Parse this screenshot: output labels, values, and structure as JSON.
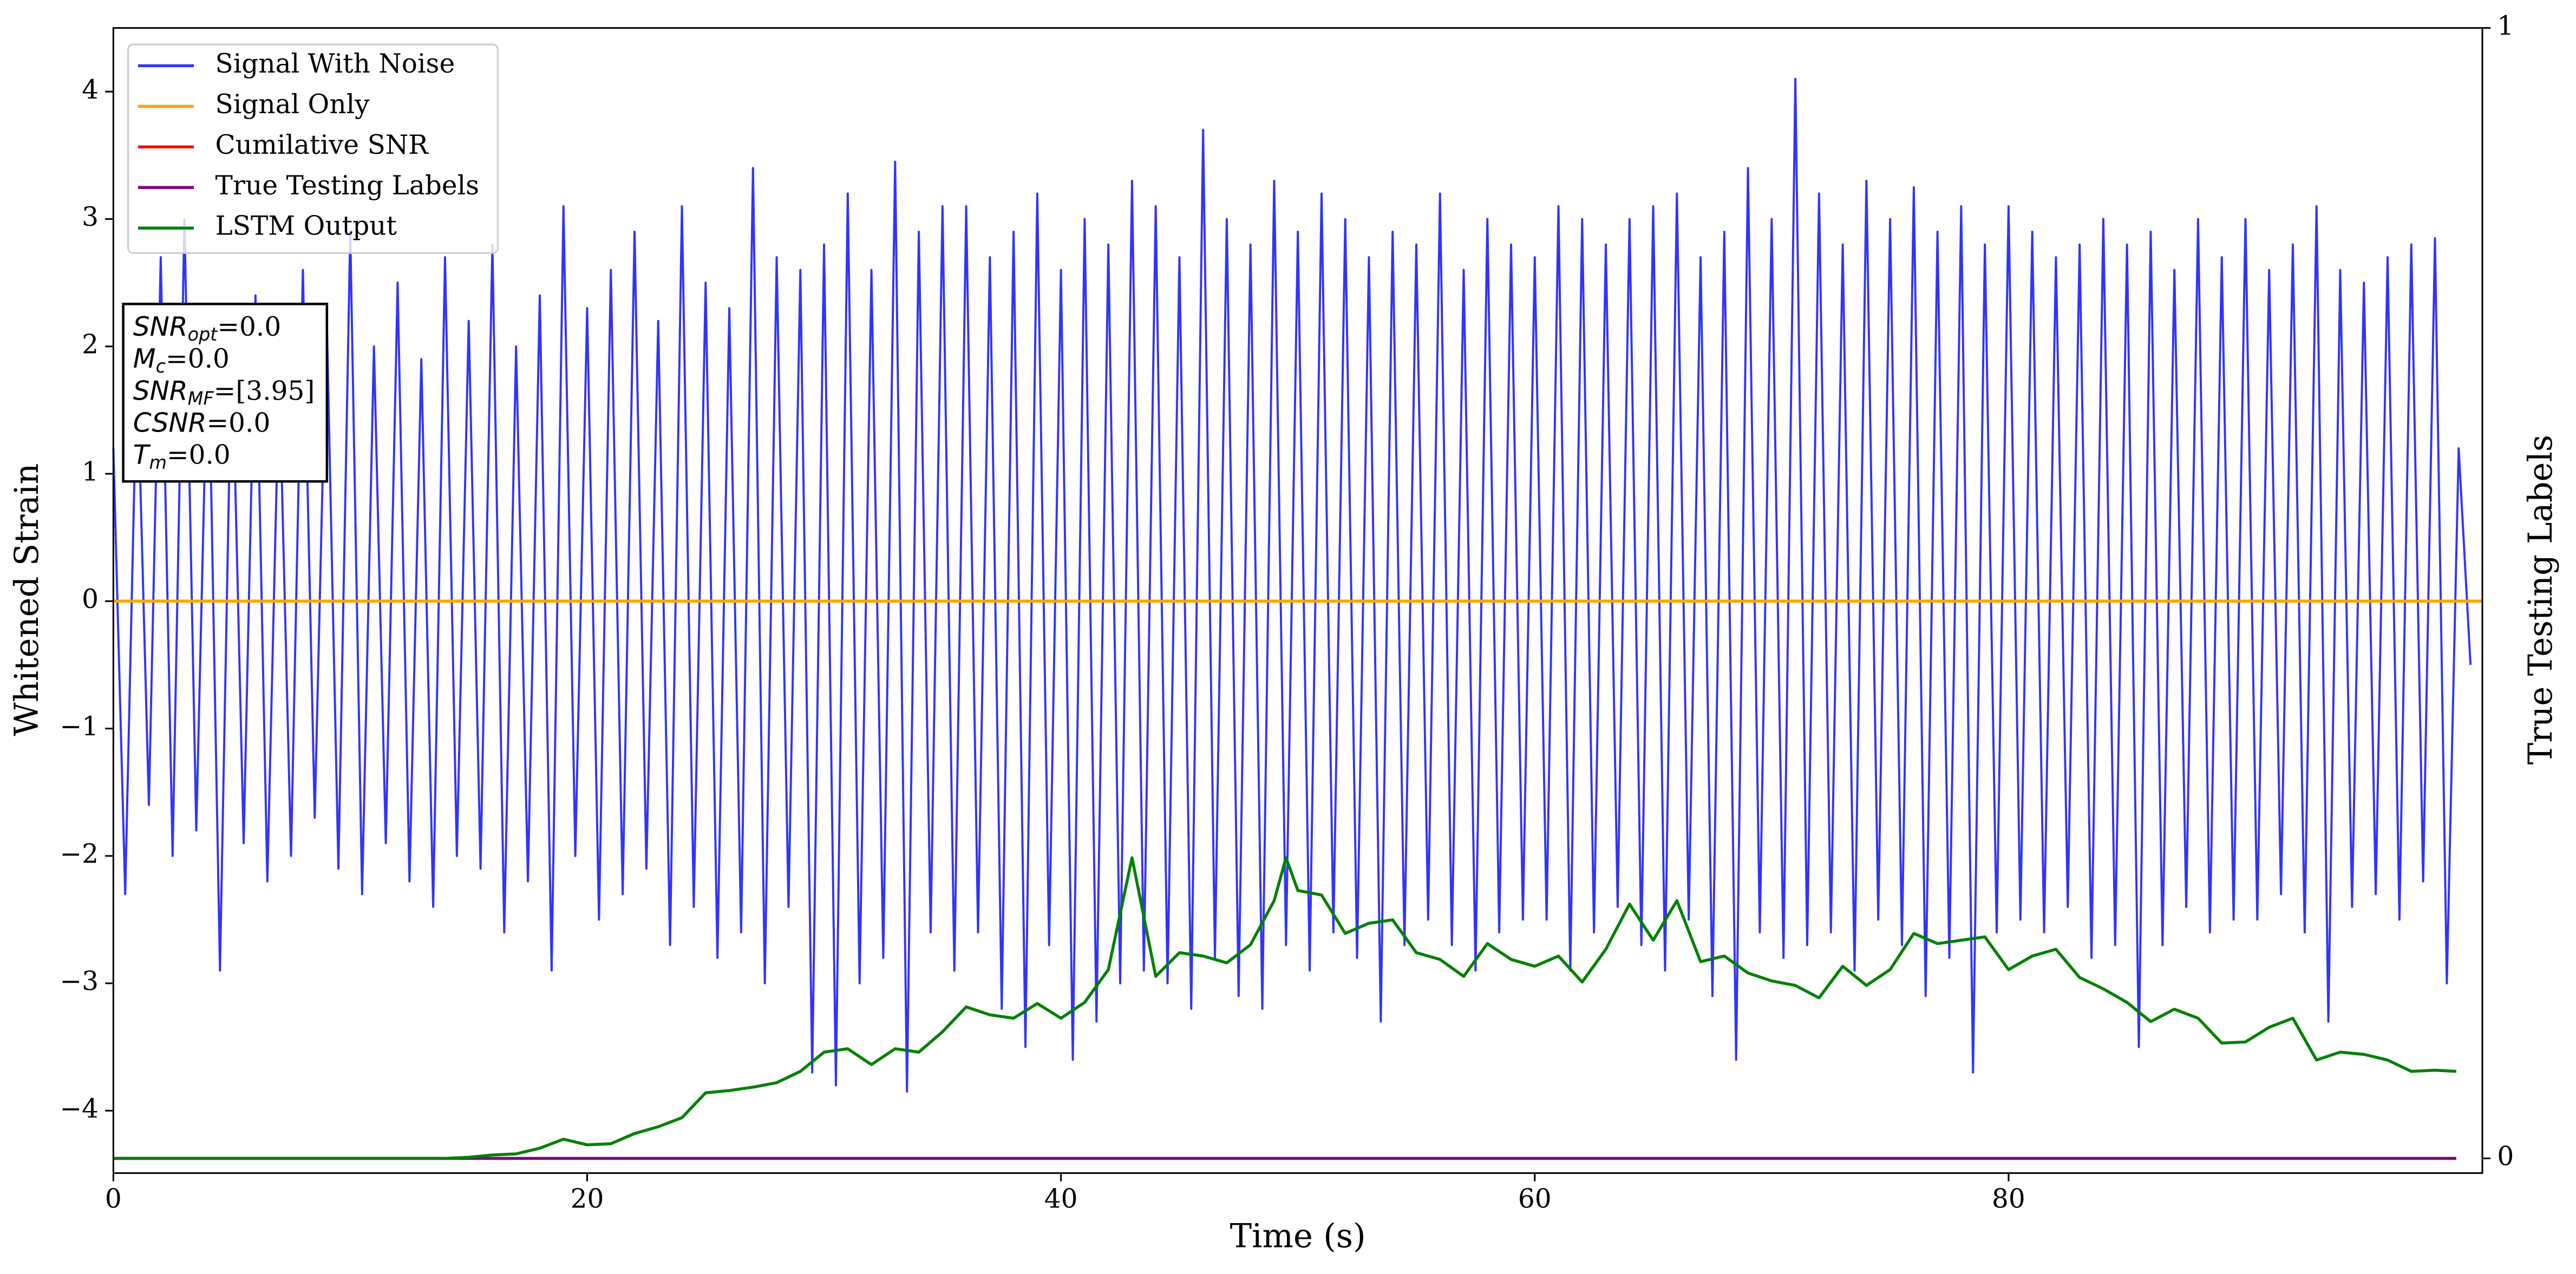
{
  "chart_data": {
    "type": "line",
    "xlabel": "Time (s)",
    "ylabel": "Whitened Strain",
    "y2label": "True Testing Labels",
    "xlim": [
      0,
      100
    ],
    "ylim": [
      -4.49,
      4.5
    ],
    "y2lim": [
      -0.013,
      1
    ],
    "xticks": [
      0,
      20,
      40,
      60,
      80
    ],
    "yticks": [
      {
        "value": -4,
        "label": "−4"
      },
      {
        "value": -3,
        "label": "−3"
      },
      {
        "value": -2,
        "label": "−2"
      },
      {
        "value": -1,
        "label": "−1"
      },
      0,
      1,
      2,
      3,
      4
    ],
    "y2ticks": [
      0,
      1
    ],
    "legend": "upper left",
    "annotation": [
      {
        "main": "SNR",
        "sub": "opt",
        "rest": "=0.0"
      },
      {
        "main": "M",
        "sub": "c",
        "rest": "=0.0"
      },
      {
        "main": "SNR",
        "sub": "MF",
        "rest": "=[3.95]"
      },
      {
        "main": "CSNR",
        "rest": "=0.0"
      },
      {
        "main": "T",
        "sub": "m",
        "rest": "=0.0"
      }
    ],
    "series": [
      {
        "name": "Signal With Noise",
        "color": "#3333ff",
        "axis": "y",
        "x": [
          0,
          0.5,
          1,
          1.5,
          2,
          2.5,
          3,
          3.5,
          4,
          4.5,
          5,
          5.5,
          6,
          6.5,
          7,
          7.5,
          8,
          8.5,
          9,
          9.5,
          10,
          10.5,
          11,
          11.5,
          12,
          12.5,
          13,
          13.5,
          14,
          14.5,
          15,
          15.5,
          16,
          16.5,
          17,
          17.5,
          18,
          18.5,
          19,
          19.5,
          20,
          20.5,
          21,
          21.5,
          22,
          22.5,
          23,
          23.5,
          24,
          24.5,
          25,
          25.5,
          26,
          26.5,
          27,
          27.5,
          28,
          28.5,
          29,
          29.5,
          30,
          30.5,
          31,
          31.5,
          32,
          32.5,
          33,
          33.5,
          34,
          34.5,
          35,
          35.5,
          36,
          36.5,
          37,
          37.5,
          38,
          38.5,
          39,
          39.5,
          40,
          40.5,
          41,
          41.5,
          42,
          42.5,
          43,
          43.5,
          44,
          44.5,
          45,
          45.5,
          46,
          46.5,
          47,
          47.5,
          48,
          48.5,
          49,
          49.5,
          50,
          50.5,
          51,
          51.5,
          52,
          52.5,
          53,
          53.5,
          54,
          54.5,
          55,
          55.5,
          56,
          56.5,
          57,
          57.5,
          58,
          58.5,
          59,
          59.5,
          60,
          60.5,
          61,
          61.5,
          62,
          62.5,
          63,
          63.5,
          64,
          64.5,
          65,
          65.5,
          66,
          66.5,
          67,
          67.5,
          68,
          68.5,
          69,
          69.5,
          70,
          70.5,
          71,
          71.5,
          72,
          72.5,
          73,
          73.5,
          74,
          74.5,
          75,
          75.5,
          76,
          76.5,
          77,
          77.5,
          78,
          78.5,
          79,
          79.5,
          80,
          80.5,
          81,
          81.5,
          82,
          82.5,
          83,
          83.5,
          84,
          84.5,
          85,
          85.5,
          86,
          86.5,
          87,
          87.5,
          88,
          88.5,
          89,
          89.5,
          90,
          90.5,
          91,
          91.5,
          92,
          92.5,
          93,
          93.5,
          94,
          94.5,
          95,
          95.5,
          96,
          96.5,
          97,
          97.5,
          98,
          98.5,
          99,
          99.5
        ],
        "values": [
          1.2,
          -2.3,
          1.9,
          -1.6,
          2.7,
          -2.0,
          3.0,
          -1.8,
          2.2,
          -2.9,
          2.1,
          -1.9,
          2.4,
          -2.2,
          1.8,
          -2.0,
          2.6,
          -1.7,
          2.3,
          -2.1,
          2.9,
          -2.3,
          2.0,
          -1.9,
          2.5,
          -2.2,
          1.9,
          -2.4,
          2.7,
          -2.0,
          2.2,
          -2.1,
          2.8,
          -2.6,
          2.0,
          -2.2,
          2.4,
          -2.9,
          3.1,
          -2.0,
          2.3,
          -2.5,
          2.6,
          -2.3,
          2.9,
          -2.1,
          2.2,
          -2.7,
          3.1,
          -2.4,
          2.5,
          -2.8,
          2.3,
          -2.6,
          3.4,
          -3.0,
          2.7,
          -2.4,
          2.6,
          -3.7,
          2.8,
          -3.8,
          3.2,
          -3.0,
          2.6,
          -2.8,
          3.45,
          -3.85,
          2.9,
          -2.6,
          3.1,
          -2.9,
          3.1,
          -2.6,
          2.7,
          -3.2,
          2.9,
          -3.5,
          3.2,
          -2.7,
          2.6,
          -3.6,
          3.0,
          -3.3,
          2.8,
          -3.0,
          3.3,
          -2.9,
          3.1,
          -3.0,
          2.7,
          -3.2,
          3.7,
          -2.8,
          3.0,
          -3.1,
          2.8,
          -3.2,
          3.3,
          -2.7,
          2.9,
          -2.9,
          3.2,
          -2.6,
          3.0,
          -2.8,
          2.7,
          -3.3,
          2.9,
          -2.7,
          2.8,
          -2.5,
          3.2,
          -2.7,
          2.6,
          -2.9,
          3.0,
          -2.6,
          2.8,
          -2.5,
          2.7,
          -2.5,
          3.1,
          -2.9,
          3.0,
          -2.6,
          2.8,
          -2.4,
          3.0,
          -2.7,
          3.1,
          -2.9,
          3.2,
          -2.5,
          2.7,
          -3.1,
          2.9,
          -3.6,
          3.4,
          -2.6,
          3.0,
          -2.8,
          4.1,
          -2.7,
          3.2,
          -2.6,
          2.8,
          -2.9,
          3.3,
          -2.5,
          3.0,
          -2.7,
          3.25,
          -3.1,
          2.9,
          -2.8,
          3.1,
          -3.7,
          2.8,
          -2.6,
          3.1,
          -2.5,
          2.9,
          -2.6,
          2.7,
          -2.4,
          2.8,
          -2.8,
          3.0,
          -2.7,
          2.8,
          -3.5,
          2.9,
          -2.7,
          2.6,
          -2.4,
          3.0,
          -2.6,
          2.7,
          -2.5,
          3.0,
          -2.5,
          2.6,
          -2.3,
          2.8,
          -2.6,
          3.1,
          -3.3,
          2.6,
          -2.4,
          2.5,
          -2.3,
          2.7,
          -2.5,
          2.8,
          -2.2,
          2.85,
          -3.0,
          1.2,
          -0.5
        ]
      },
      {
        "name": "Signal Only",
        "color": "orange",
        "axis": "y",
        "x": [
          0,
          100
        ],
        "values": [
          0,
          0
        ]
      },
      {
        "name": "Cumilative SNR",
        "color": "red",
        "axis": "y",
        "x": [
          0,
          100
        ],
        "values": [
          0,
          0
        ]
      },
      {
        "name": "True Testing Labels",
        "color": "purple",
        "axis": "y2",
        "x": [
          0,
          98.9
        ],
        "values": [
          0,
          0
        ]
      },
      {
        "name": "LSTM Output",
        "color": "green",
        "axis": "y2",
        "x": [
          0,
          14,
          15,
          16,
          17,
          18,
          19,
          20,
          21,
          22,
          23,
          24,
          25,
          26,
          27,
          28,
          29,
          30,
          31,
          32,
          33,
          34,
          35,
          36,
          37,
          38,
          39,
          40,
          41,
          42,
          43,
          44,
          45,
          46,
          47,
          48,
          49,
          49.5,
          50,
          51,
          52,
          53,
          54,
          55,
          56,
          57,
          58,
          59,
          60,
          61,
          62,
          63,
          64,
          65,
          66,
          67,
          68,
          69,
          70,
          71,
          72,
          73,
          74,
          75,
          76,
          77,
          78,
          79,
          80,
          81,
          82,
          83,
          84,
          85,
          86,
          87,
          88,
          89,
          90,
          91,
          92,
          93,
          94,
          95,
          96,
          97,
          98,
          98.9
        ],
        "values": [
          0,
          0,
          0.001,
          0.003,
          0.004,
          0.009,
          0.017,
          0.012,
          0.013,
          0.022,
          0.028,
          0.036,
          0.058,
          0.06,
          0.063,
          0.067,
          0.077,
          0.094,
          0.097,
          0.083,
          0.097,
          0.094,
          0.112,
          0.134,
          0.127,
          0.124,
          0.137,
          0.124,
          0.138,
          0.167,
          0.266,
          0.161,
          0.182,
          0.179,
          0.173,
          0.189,
          0.228,
          0.266,
          0.237,
          0.233,
          0.199,
          0.208,
          0.211,
          0.182,
          0.176,
          0.161,
          0.19,
          0.176,
          0.17,
          0.179,
          0.156,
          0.185,
          0.225,
          0.193,
          0.228,
          0.174,
          0.179,
          0.164,
          0.157,
          0.153,
          0.142,
          0.17,
          0.153,
          0.167,
          0.199,
          0.19,
          0.193,
          0.196,
          0.167,
          0.179,
          0.185,
          0.16,
          0.15,
          0.138,
          0.121,
          0.132,
          0.124,
          0.102,
          0.103,
          0.116,
          0.124,
          0.087,
          0.094,
          0.092,
          0.087,
          0.077,
          0.078,
          0.077
        ]
      }
    ]
  }
}
